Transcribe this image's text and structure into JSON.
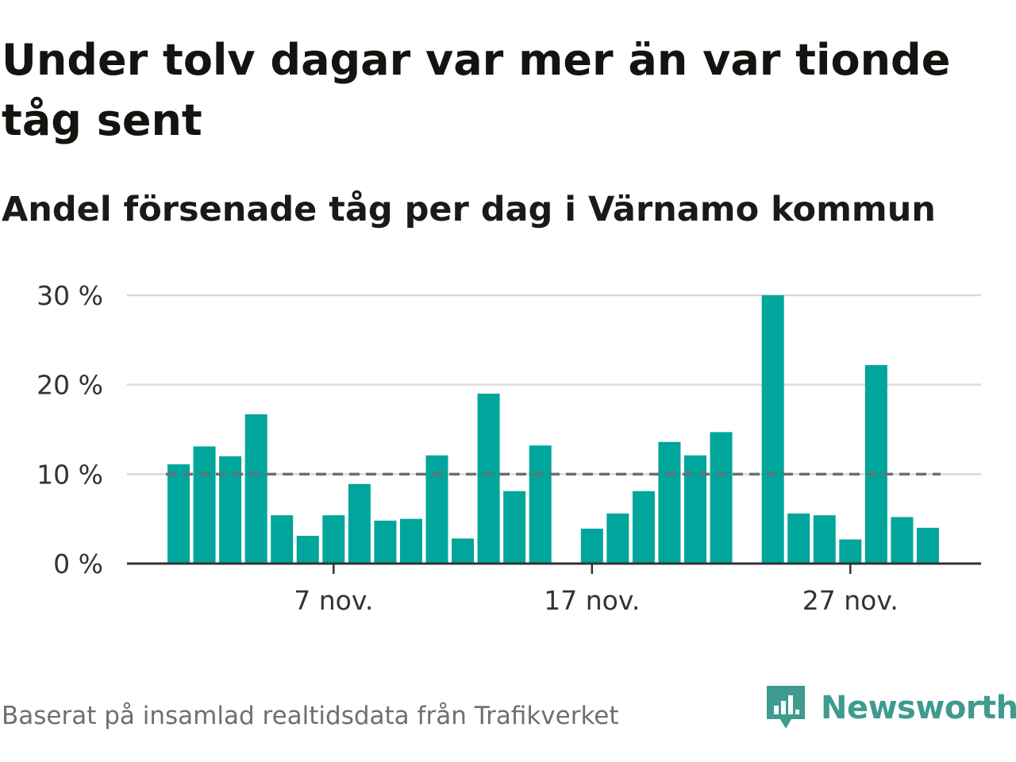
{
  "title": "Under tolv dagar var mer än var tionde tåg sent",
  "subtitle": "Andel försenade tåg per dag i Värnamo kommun",
  "source": "Baserat på insamlad realtidsdata från Trafikverket",
  "brand": {
    "name": "Newsworthy",
    "icon": "newsworthy-logo-icon"
  },
  "colors": {
    "bar": "#00a59b",
    "reference_line": "#6e6e6e",
    "grid": "#d9d9d9",
    "axis": "#333333",
    "brand": "#3f9a8f"
  },
  "chart_data": {
    "type": "bar",
    "categories": [
      "1 nov.",
      "2 nov.",
      "3 nov.",
      "4 nov.",
      "5 nov.",
      "6 nov.",
      "7 nov.",
      "8 nov.",
      "9 nov.",
      "10 nov.",
      "11 nov.",
      "12 nov.",
      "13 nov.",
      "14 nov.",
      "15 nov.",
      "16 nov.",
      "17 nov.",
      "18 nov.",
      "19 nov.",
      "20 nov.",
      "21 nov.",
      "22 nov.",
      "23 nov.",
      "24 nov.",
      "25 nov.",
      "26 nov.",
      "27 nov.",
      "28 nov.",
      "29 nov.",
      "30 nov."
    ],
    "values": [
      11.1,
      13.1,
      12.0,
      16.7,
      5.4,
      3.1,
      5.4,
      8.9,
      4.8,
      5.0,
      12.1,
      2.8,
      19.0,
      8.1,
      13.2,
      null,
      3.9,
      5.6,
      8.1,
      13.6,
      12.1,
      14.7,
      null,
      30.0,
      5.6,
      5.4,
      2.7,
      22.2,
      5.2,
      4.0
    ],
    "x_tick_labels": [
      "7 nov.",
      "17 nov.",
      "27 nov."
    ],
    "x_tick_categories": [
      "7 nov.",
      "17 nov.",
      "27 nov."
    ],
    "y_ticks": [
      0,
      10,
      20,
      30
    ],
    "y_tick_labels": [
      "0 %",
      "10 %",
      "20 %",
      "30 %"
    ],
    "ylim": [
      0,
      30
    ],
    "reference_line": 10,
    "grid": true,
    "xlabel": "",
    "ylabel": ""
  }
}
